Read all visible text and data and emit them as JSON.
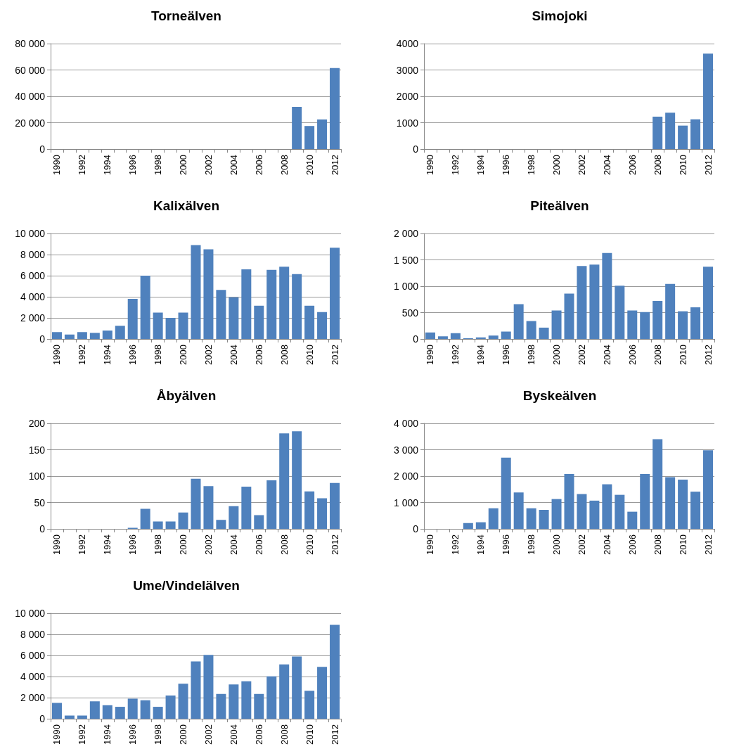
{
  "chart_data": [
    {
      "type": "bar",
      "title": "Torneälven",
      "categories": [
        "1990",
        null,
        "1992",
        null,
        "1994",
        null,
        "1996",
        null,
        "1998",
        null,
        "2000",
        null,
        "2002",
        null,
        "2004",
        null,
        "2006",
        null,
        "2008",
        null,
        "2010",
        null,
        "2012"
      ],
      "values": [
        0,
        0,
        0,
        0,
        0,
        0,
        0,
        0,
        0,
        0,
        0,
        0,
        0,
        0,
        0,
        0,
        0,
        0,
        0,
        32000,
        17500,
        22500,
        61500
      ],
      "color": "#4f81bd",
      "ylim": [
        0,
        80000
      ],
      "yticks": [
        0,
        {
          "value": 20000,
          "label": "20 000"
        },
        {
          "value": 40000,
          "label": "40 000"
        },
        {
          "value": 60000,
          "label": "60 000"
        },
        {
          "value": 80000,
          "label": "80 000"
        }
      ],
      "grid": "y"
    },
    {
      "type": "bar",
      "title": "Simojoki",
      "categories": [
        "1990",
        null,
        "1992",
        null,
        "1994",
        null,
        "1996",
        null,
        "1998",
        null,
        "2000",
        null,
        "2002",
        null,
        "2004",
        null,
        "2006",
        null,
        "2008",
        null,
        "2010",
        null,
        "2012"
      ],
      "values": [
        0,
        0,
        0,
        0,
        0,
        0,
        0,
        0,
        0,
        0,
        0,
        0,
        0,
        0,
        0,
        0,
        0,
        0,
        1230,
        1380,
        890,
        1130,
        3620
      ],
      "color": "#4f81bd",
      "ylim": [
        0,
        4000
      ],
      "yticks": [
        0,
        1000,
        2000,
        3000,
        4000
      ],
      "grid": "y"
    },
    {
      "type": "bar",
      "title": "Kalixälven",
      "categories": [
        "1990",
        null,
        "1992",
        null,
        "1994",
        null,
        "1996",
        null,
        "1998",
        null,
        "2000",
        null,
        "2002",
        null,
        "2004",
        null,
        "2006",
        null,
        "2008",
        null,
        "2010",
        null,
        "2012"
      ],
      "values": [
        650,
        420,
        650,
        580,
        800,
        1250,
        3800,
        6000,
        2500,
        2000,
        2500,
        8900,
        8500,
        4650,
        3950,
        6600,
        3150,
        6550,
        6850,
        6150,
        3150,
        2550,
        8650
      ],
      "color": "#4f81bd",
      "ylim": [
        0,
        10000
      ],
      "yticks": [
        0,
        {
          "value": 2000,
          "label": "2 000"
        },
        {
          "value": 4000,
          "label": "4 000"
        },
        {
          "value": 6000,
          "label": "6 000"
        },
        {
          "value": 8000,
          "label": "8 000"
        },
        {
          "value": 10000,
          "label": "10 000"
        }
      ],
      "grid": "y"
    },
    {
      "type": "bar",
      "title": "Piteälven",
      "categories": [
        "1990",
        null,
        "1992",
        null,
        "1994",
        null,
        "1996",
        null,
        "1998",
        null,
        "2000",
        null,
        "2002",
        null,
        "2004",
        null,
        "2006",
        null,
        "2008",
        null,
        "2010",
        null,
        "2012"
      ],
      "values": [
        125,
        50,
        110,
        15,
        30,
        65,
        140,
        660,
        340,
        215,
        540,
        860,
        1385,
        1410,
        1630,
        1010,
        540,
        510,
        720,
        1045,
        525,
        600,
        1370
      ],
      "color": "#4f81bd",
      "ylim": [
        0,
        2000
      ],
      "yticks": [
        0,
        500,
        {
          "value": 1000,
          "label": "1 000"
        },
        {
          "value": 1500,
          "label": "1 500"
        },
        {
          "value": 2000,
          "label": "2 000"
        }
      ],
      "grid": "y"
    },
    {
      "type": "bar",
      "title": "Åbyälven",
      "categories": [
        "1990",
        null,
        "1992",
        null,
        "1994",
        null,
        "1996",
        null,
        "1998",
        null,
        "2000",
        null,
        "2002",
        null,
        "2004",
        null,
        "2006",
        null,
        "2008",
        null,
        "2010",
        null,
        "2012"
      ],
      "values": [
        0,
        0,
        0,
        0,
        0,
        0,
        2,
        38,
        14,
        14,
        31,
        95,
        81,
        17,
        43,
        80,
        26,
        92,
        181,
        185,
        71,
        58,
        87
      ],
      "color": "#4f81bd",
      "ylim": [
        0,
        200
      ],
      "yticks": [
        0,
        50,
        100,
        150,
        200
      ],
      "grid": "y"
    },
    {
      "type": "bar",
      "title": "Byskeälven",
      "categories": [
        "1990",
        null,
        "1992",
        null,
        "1994",
        null,
        "1996",
        null,
        "1998",
        null,
        "2000",
        null,
        "2002",
        null,
        "2004",
        null,
        "2006",
        null,
        "2008",
        null,
        "2010",
        null,
        "2012"
      ],
      "values": [
        0,
        0,
        0,
        220,
        250,
        780,
        2700,
        1380,
        780,
        720,
        1130,
        2080,
        1320,
        1070,
        1690,
        1290,
        650,
        2080,
        3400,
        1960,
        1870,
        1410,
        2980
      ],
      "color": "#4f81bd",
      "ylim": [
        0,
        4000
      ],
      "yticks": [
        0,
        {
          "value": 1000,
          "label": "1 000"
        },
        {
          "value": 2000,
          "label": "2 000"
        },
        {
          "value": 3000,
          "label": "3 000"
        },
        {
          "value": 4000,
          "label": "4 000"
        }
      ],
      "grid": "y"
    },
    {
      "type": "bar",
      "title": "Ume/Vindelälven",
      "categories": [
        "1990",
        null,
        "1992",
        null,
        "1994",
        null,
        "1996",
        null,
        "1998",
        null,
        "2000",
        null,
        "2002",
        null,
        "2004",
        null,
        "2006",
        null,
        "2008",
        null,
        "2010",
        null,
        "2012"
      ],
      "values": [
        1500,
        300,
        300,
        1650,
        1280,
        1130,
        1900,
        1750,
        1130,
        2200,
        3320,
        5440,
        6050,
        2350,
        3250,
        3550,
        2350,
        4020,
        5150,
        5900,
        2650,
        4920,
        8900
      ],
      "color": "#4f81bd",
      "ylim": [
        0,
        10000
      ],
      "yticks": [
        0,
        {
          "value": 2000,
          "label": "2 000"
        },
        {
          "value": 4000,
          "label": "4 000"
        },
        {
          "value": 6000,
          "label": "6 000"
        },
        {
          "value": 8000,
          "label": "8 000"
        },
        {
          "value": 10000,
          "label": "10 000"
        }
      ],
      "grid": "y"
    }
  ]
}
